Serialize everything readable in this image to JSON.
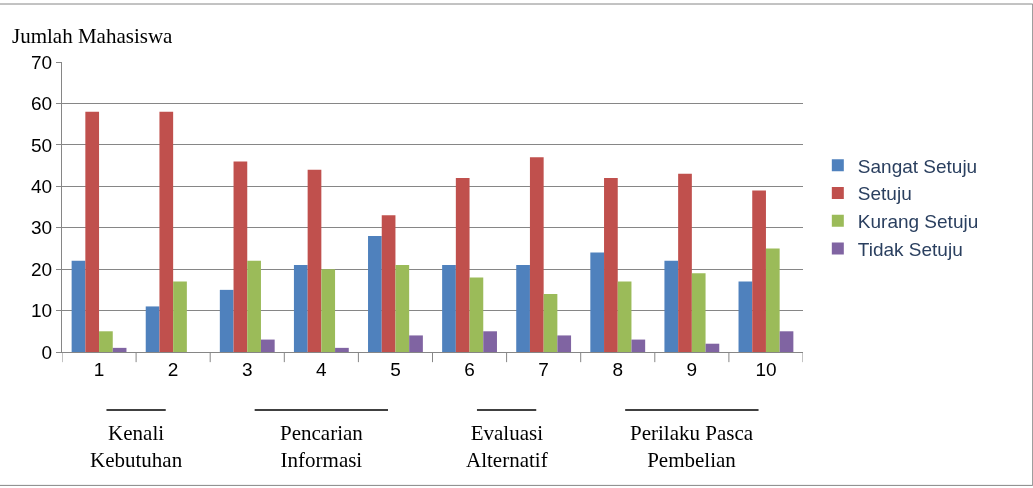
{
  "chart_data": {
    "type": "bar",
    "ylabel": "Jumlah Mahasiswa",
    "categories": [
      "1",
      "2",
      "3",
      "4",
      "5",
      "6",
      "7",
      "8",
      "9",
      "10"
    ],
    "series": [
      {
        "name": "Sangat Setuju",
        "color": "#4f81bd",
        "values": [
          22,
          11,
          15,
          21,
          28,
          21,
          21,
          24,
          22,
          17
        ]
      },
      {
        "name": "Setuju",
        "color": "#c0504d",
        "values": [
          58,
          58,
          46,
          44,
          33,
          42,
          47,
          42,
          43,
          39
        ]
      },
      {
        "name": "Kurang Setuju",
        "color": "#9bbb59",
        "values": [
          5,
          17,
          22,
          20,
          21,
          18,
          14,
          17,
          19,
          25
        ]
      },
      {
        "name": "Tidak Setuju",
        "color": "#8064a2",
        "values": [
          1,
          0,
          3,
          1,
          4,
          5,
          4,
          3,
          2,
          5
        ]
      }
    ],
    "ylim": [
      0,
      70
    ],
    "yticks": [
      0,
      10,
      20,
      30,
      40,
      50,
      60,
      70
    ],
    "grid": "y",
    "legend": "right",
    "annotations": [
      "Kenali\nKebutuhan",
      "Pencarian\nInformasi",
      "Evaluasi\nAlternatif",
      "Perilaku Pasca\nPembelian"
    ]
  }
}
